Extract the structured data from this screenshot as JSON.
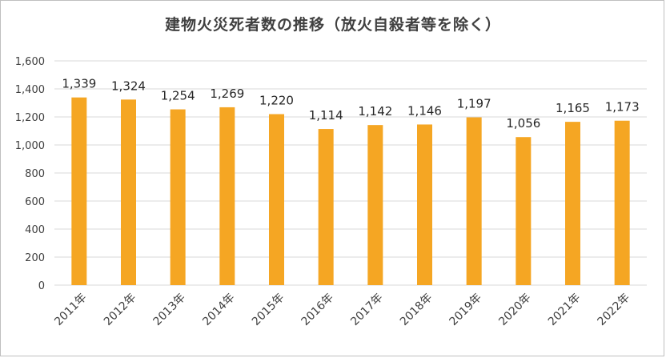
{
  "chart_data": {
    "type": "bar",
    "title": "建物火災死者数の推移（放火自殺者等を除く）",
    "categories": [
      "2011年",
      "2012年",
      "2013年",
      "2014年",
      "2015年",
      "2016年",
      "2017年",
      "2018年",
      "2019年",
      "2020年",
      "2021年",
      "2022年"
    ],
    "values": [
      1339,
      1324,
      1254,
      1269,
      1220,
      1114,
      1142,
      1146,
      1197,
      1056,
      1165,
      1173
    ],
    "data_labels": [
      "1,339",
      "1,324",
      "1,254",
      "1,269",
      "1,220",
      "1,114",
      "1,142",
      "1,146",
      "1,197",
      "1,056",
      "1,165",
      "1,173"
    ],
    "yticks": [
      0,
      200,
      400,
      600,
      800,
      1000,
      1200,
      1400,
      1600
    ],
    "ytick_labels": [
      "0",
      "200",
      "400",
      "600",
      "800",
      "1,000",
      "1,200",
      "1,400",
      "1,600"
    ],
    "ylim": [
      0,
      1600
    ],
    "xlabel": "",
    "ylabel": "",
    "grid": true,
    "legend": "none",
    "bar_color": "#F5A623",
    "grid_color": "#d9d9d9"
  }
}
